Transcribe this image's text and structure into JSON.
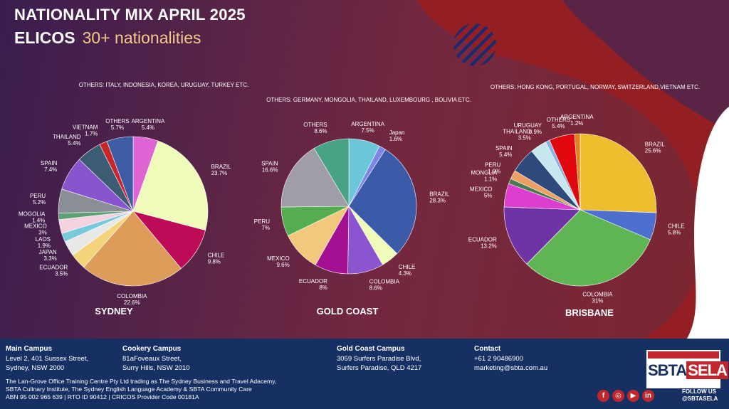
{
  "header": {
    "title": "NATIONALITY MIX APRIL 2025",
    "program": "ELICOS",
    "subtitle": "30+ nationalities"
  },
  "chart_data": [
    {
      "type": "pie",
      "title": "SYDNEY",
      "others_note": "OTHERS: ITALY, INDONESIA, KOREA, URUGUAY, TURKEY ETC.",
      "categories": [
        "ARGENTINA",
        "BRAZIL",
        "CHILE",
        "COLOMBIA",
        "ECUADOR",
        "JAPAN",
        "LAOS",
        "MEXICO",
        "MOGOLIA",
        "PERU",
        "SPAIN",
        "THAILAND",
        "VIETNAM",
        "OTHERS"
      ],
      "values": [
        5.4,
        23.7,
        9.8,
        22.6,
        3.5,
        3.3,
        1.9,
        3,
        1.4,
        5.2,
        7.4,
        5.4,
        1.7,
        5.7
      ],
      "labels": [
        "5.4%",
        "23.7%",
        "9.8%",
        "22.6%",
        "3.5%",
        "3.3%",
        "1.9%",
        "3%",
        "1.4%",
        "5.2%",
        "7.4%",
        "5.4%",
        "1.7%",
        "5.7%"
      ],
      "colors": [
        "#df64d4",
        "#eefbb9",
        "#bd0b58",
        "#dd9c5a",
        "#f4d47a",
        "#e8e8e8",
        "#78cadb",
        "#f4d2df",
        "#5ea075",
        "#8a8e96",
        "#8955cf",
        "#3c5c74",
        "#c8262a",
        "#3e5ca4"
      ]
    },
    {
      "type": "pie",
      "title": "GOLD COAST",
      "others_note": "OTHERS: GERMANY, MONGOLIA, THAILAND, LUXEMBOURG , BOLIVIA ETC.",
      "categories": [
        "ARGENTINA",
        "Japan",
        "BRAZIL",
        "CHILE",
        "COLOMBIA",
        "ECUADOR",
        "MEXICO",
        "PERU",
        "SPAIN",
        "OTHERS"
      ],
      "values": [
        7.5,
        1.6,
        28.3,
        4.3,
        8.6,
        8,
        9.6,
        7,
        16.6,
        8.6
      ],
      "labels": [
        "7.5%",
        "1.6%",
        "28.3%",
        "4.3%",
        "8.6%",
        "8%",
        "9.6%",
        "7%",
        "16.6%",
        "8.6%"
      ],
      "colors": [
        "#6cc6da",
        "#7d86e6",
        "#3b5aa8",
        "#eefbb9",
        "#8a55cf",
        "#a31192",
        "#f2c97c",
        "#55ad52",
        "#a19da8",
        "#4aa286"
      ]
    },
    {
      "type": "pie",
      "title": "BRISBANE",
      "others_note": "OTHERS: HONG KONG, PORTUGAL, NORWAY, SWITZERLAND,VIETNAM ETC.",
      "categories": [
        "BRAZIL",
        "CHILE",
        "COLOMBIA",
        "ECUADOR",
        "MEXICO",
        "MONGLIA",
        "PERU",
        "SPAIN",
        "THAILAND",
        "URUGUAY",
        "OTHERS",
        "ARGENTINA"
      ],
      "values": [
        25.6,
        5.8,
        31,
        13.2,
        5,
        1.1,
        1.9,
        5.4,
        3.5,
        0.9,
        5.4,
        1.2
      ],
      "labels": [
        "25.6%",
        "5.8%",
        "31%",
        "13.2%",
        "5%",
        "1.1%",
        "1.9%",
        "5.4%",
        "3.5%",
        "0.9%",
        "5.4%",
        "1.2%"
      ],
      "colors": [
        "#efbe2e",
        "#4f6fcf",
        "#5fb454",
        "#6f33a6",
        "#dc3fce",
        "#497a4d",
        "#ec9f62",
        "#2e4a7c",
        "#c6e6f0",
        "#86b5e5",
        "#e0070f",
        "#e2811d"
      ]
    }
  ],
  "footer": {
    "main_campus": {
      "heading": "Main Campus",
      "line1": "Level 2, 401 Sussex Street,",
      "line2": "Sydney, NSW 2000"
    },
    "cookery_campus": {
      "heading": "Cookery Campus",
      "line1": "81aFoveaux Street,",
      "line2": "Surry Hills, NSW 2010"
    },
    "gold_coast_campus": {
      "heading": "Gold Coast Campus",
      "line1": "3059 Surfers Paradise Blvd,",
      "line2": "Surfers Paradise, QLD 4217"
    },
    "contact": {
      "heading": "Contact",
      "line1": "+61 2 90486900",
      "line2": "marketing@sbta.com.au"
    },
    "legal1": "The Lan-Grove Office Training Centre Pty Ltd trading as The Sydney Business and Travel Adacemy,",
    "legal2": "SBTA Culinary Institute, The Sydney English Language Academy & SBTA Community Care",
    "legal3": "ABN 95 002 965 639 | RTO ID 90412 | CRICOS Provider Code 00181A",
    "logo_left": "SBTA",
    "logo_right": "SELA",
    "follow_line1": "FOLLOW US",
    "follow_line2": "@SBTASELA"
  }
}
